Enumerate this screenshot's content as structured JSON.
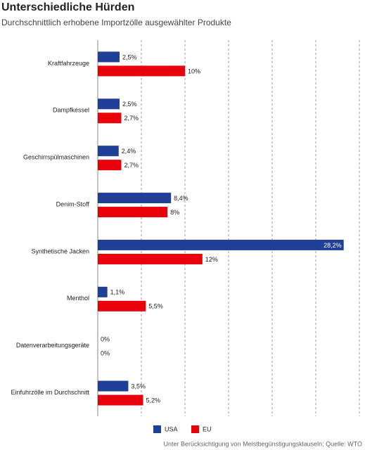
{
  "chart_data": {
    "type": "bar",
    "orientation": "horizontal",
    "title": "Unterschiedliche Hürden",
    "subtitle": "Durchschnittlich erhobene Importzölle ausgewählter Produkte",
    "source": "Unter Berücksichtigung von Meistbegünstigungsklauseln; Quelle: WTO",
    "categories": [
      "Kraftfahrzeuge",
      "Dampfkessel",
      "Geschirrspülmaschinen",
      "Denim-Stoff",
      "Synthetische Jacken",
      "Menthol",
      "Datenverarbeitungsgeräte",
      "Einfuhrzölle im Durchschnitt"
    ],
    "series": [
      {
        "name": "USA",
        "color": "#1f3f99",
        "values": [
          2.5,
          2.5,
          2.4,
          8.4,
          28.2,
          1.1,
          0,
          3.5
        ],
        "value_labels": [
          "2,5%",
          "2,5%",
          "2,4%",
          "8,4%",
          "28,2%",
          "1,1%",
          "0%",
          "3,5%"
        ]
      },
      {
        "name": "EU",
        "color": "#e8000b",
        "values": [
          10,
          2.7,
          2.7,
          8,
          12,
          5.5,
          0,
          5.2
        ],
        "value_labels": [
          "10%",
          "2,7%",
          "2,7%",
          "8%",
          "12%",
          "5,5%",
          "0%",
          "5,2%"
        ]
      }
    ],
    "xlim": [
      0,
      30
    ],
    "xticks": [
      0,
      5,
      10,
      15,
      20,
      25,
      30
    ],
    "grid": true,
    "legend": "bottom"
  }
}
